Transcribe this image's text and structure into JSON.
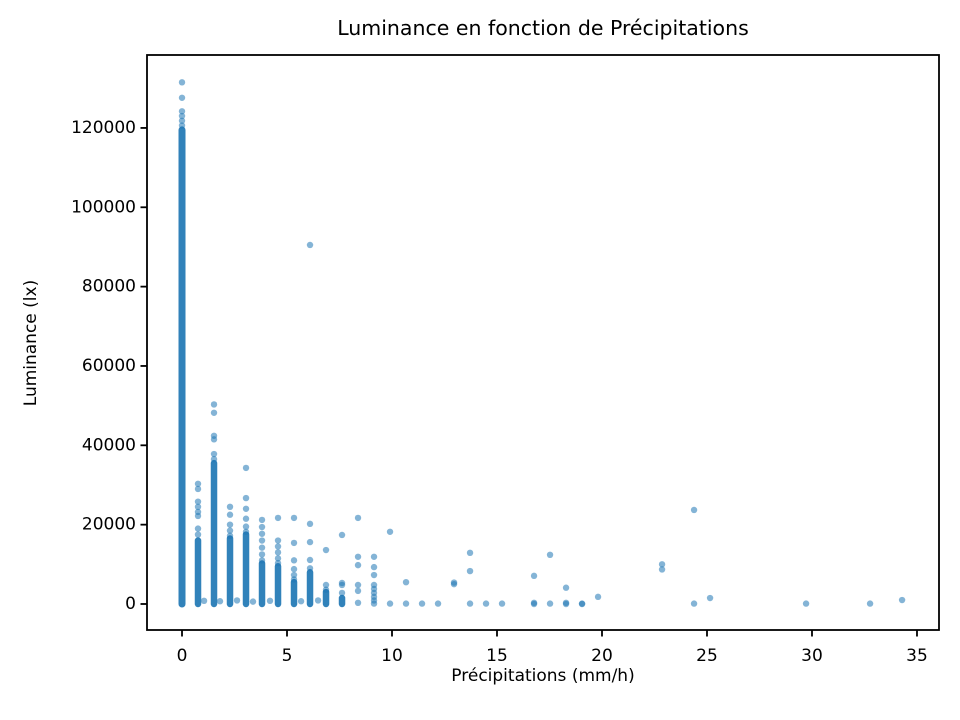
{
  "figure": {
    "background": "#ffffff",
    "text_color": "#000000",
    "spine_color": "#000000"
  },
  "chart_data": {
    "type": "scatter",
    "title": "Luminance en fonction de Précipitations",
    "xlabel": "Précipitations (mm/h)",
    "ylabel": "Luminance (lx)",
    "xlim": [
      -1.667,
      36.048
    ],
    "ylim": [
      -6555,
      138386
    ],
    "xticks": [
      0,
      5,
      10,
      15,
      20,
      25,
      30,
      35
    ],
    "yticks": [
      0,
      20000,
      40000,
      60000,
      80000,
      100000,
      120000
    ],
    "grid": false,
    "legend": false,
    "marker": {
      "color": "#1f77b4",
      "alpha": 0.55,
      "radius_px": 3.2
    },
    "dense_columns": [
      {
        "x": 0,
        "y0": 0,
        "y1": 119500,
        "w": 7
      },
      {
        "x": 0.762,
        "y0": 0,
        "y1": 16000,
        "w": 6.5
      },
      {
        "x": 1.524,
        "y0": 0,
        "y1": 35500,
        "w": 6.5
      },
      {
        "x": 2.286,
        "y0": 0,
        "y1": 16500,
        "w": 6.5
      },
      {
        "x": 3.048,
        "y0": 0,
        "y1": 17500,
        "w": 6.5
      },
      {
        "x": 3.81,
        "y0": 0,
        "y1": 10200,
        "w": 6.5
      },
      {
        "x": 4.572,
        "y0": 0,
        "y1": 9500,
        "w": 6.5
      },
      {
        "x": 5.334,
        "y0": 0,
        "y1": 5500,
        "w": 6.5
      },
      {
        "x": 6.096,
        "y0": 0,
        "y1": 8000,
        "w": 6.5
      },
      {
        "x": 6.858,
        "y0": 0,
        "y1": 3000,
        "w": 6.5
      },
      {
        "x": 7.62,
        "y0": 0,
        "y1": 1500,
        "w": 6.5
      }
    ],
    "points": [
      [
        0,
        131500
      ],
      [
        0,
        127600
      ],
      [
        0,
        124200
      ],
      [
        0,
        123000
      ],
      [
        0,
        121800
      ],
      [
        0,
        120600
      ],
      [
        0.762,
        30300
      ],
      [
        0.762,
        29000
      ],
      [
        0.762,
        25800
      ],
      [
        0.762,
        24500
      ],
      [
        0.762,
        23200
      ],
      [
        0.762,
        22200
      ],
      [
        0.762,
        19000
      ],
      [
        0.762,
        17500
      ],
      [
        1.524,
        50300
      ],
      [
        1.524,
        48200
      ],
      [
        1.524,
        42400
      ],
      [
        1.524,
        41500
      ],
      [
        1.524,
        37800
      ],
      [
        1.524,
        36500
      ],
      [
        2.286,
        24500
      ],
      [
        2.286,
        22500
      ],
      [
        2.286,
        20000
      ],
      [
        2.286,
        18500
      ],
      [
        2.286,
        17200
      ],
      [
        3.048,
        34300
      ],
      [
        3.048,
        26700
      ],
      [
        3.048,
        24000
      ],
      [
        3.048,
        21500
      ],
      [
        3.048,
        19500
      ],
      [
        3.048,
        18200
      ],
      [
        3.81,
        21200
      ],
      [
        3.81,
        19400
      ],
      [
        3.81,
        17700
      ],
      [
        3.81,
        16000
      ],
      [
        3.81,
        14200
      ],
      [
        3.81,
        12500
      ],
      [
        3.81,
        11000
      ],
      [
        4.572,
        21700
      ],
      [
        4.572,
        16000
      ],
      [
        4.572,
        14500
      ],
      [
        4.572,
        13000
      ],
      [
        4.572,
        11500
      ],
      [
        4.572,
        10300
      ],
      [
        5.334,
        21700
      ],
      [
        5.334,
        15400
      ],
      [
        5.334,
        11000
      ],
      [
        5.334,
        8800
      ],
      [
        5.334,
        7300
      ],
      [
        5.334,
        6200
      ],
      [
        6.096,
        90500
      ],
      [
        6.096,
        20200
      ],
      [
        6.096,
        15600
      ],
      [
        6.096,
        11100
      ],
      [
        6.096,
        9000
      ],
      [
        6.858,
        13600
      ],
      [
        6.858,
        4800
      ],
      [
        6.858,
        3600
      ],
      [
        7.62,
        17400
      ],
      [
        7.62,
        5300
      ],
      [
        7.62,
        4800
      ],
      [
        7.62,
        2800
      ],
      [
        8.382,
        21700
      ],
      [
        8.382,
        11900
      ],
      [
        8.382,
        9800
      ],
      [
        8.382,
        4800
      ],
      [
        8.382,
        3300
      ],
      [
        8.382,
        300
      ],
      [
        9.144,
        11900
      ],
      [
        9.144,
        9300
      ],
      [
        9.144,
        7300
      ],
      [
        9.144,
        4800
      ],
      [
        9.144,
        3800
      ],
      [
        9.144,
        2800
      ],
      [
        9.144,
        1800
      ],
      [
        9.144,
        900
      ],
      [
        9.144,
        100
      ],
      [
        9.906,
        18200
      ],
      [
        9.906,
        100
      ],
      [
        10.668,
        5500
      ],
      [
        10.668,
        100
      ],
      [
        11.43,
        100
      ],
      [
        12.192,
        100
      ],
      [
        12.954,
        5400
      ],
      [
        12.954,
        5000
      ],
      [
        13.716,
        12900
      ],
      [
        13.716,
        8300
      ],
      [
        13.716,
        100
      ],
      [
        14.478,
        100
      ],
      [
        15.24,
        100
      ],
      [
        16.764,
        7100
      ],
      [
        16.764,
        300
      ],
      [
        16.764,
        0
      ],
      [
        17.526,
        12400
      ],
      [
        17.526,
        100
      ],
      [
        18.288,
        4100
      ],
      [
        18.288,
        300
      ],
      [
        18.288,
        0
      ],
      [
        19.05,
        100
      ],
      [
        19.05,
        0
      ],
      [
        19.812,
        1800
      ],
      [
        22.86,
        10000
      ],
      [
        22.86,
        8700
      ],
      [
        24.384,
        23700
      ],
      [
        24.384,
        100
      ],
      [
        25.146,
        1500
      ],
      [
        29.718,
        100
      ],
      [
        32.766,
        100
      ],
      [
        34.29,
        1000
      ],
      [
        1.05,
        800
      ],
      [
        1.81,
        700
      ],
      [
        2.62,
        900
      ],
      [
        3.38,
        600
      ],
      [
        4.19,
        800
      ],
      [
        5.67,
        700
      ],
      [
        6.48,
        900
      ]
    ]
  }
}
